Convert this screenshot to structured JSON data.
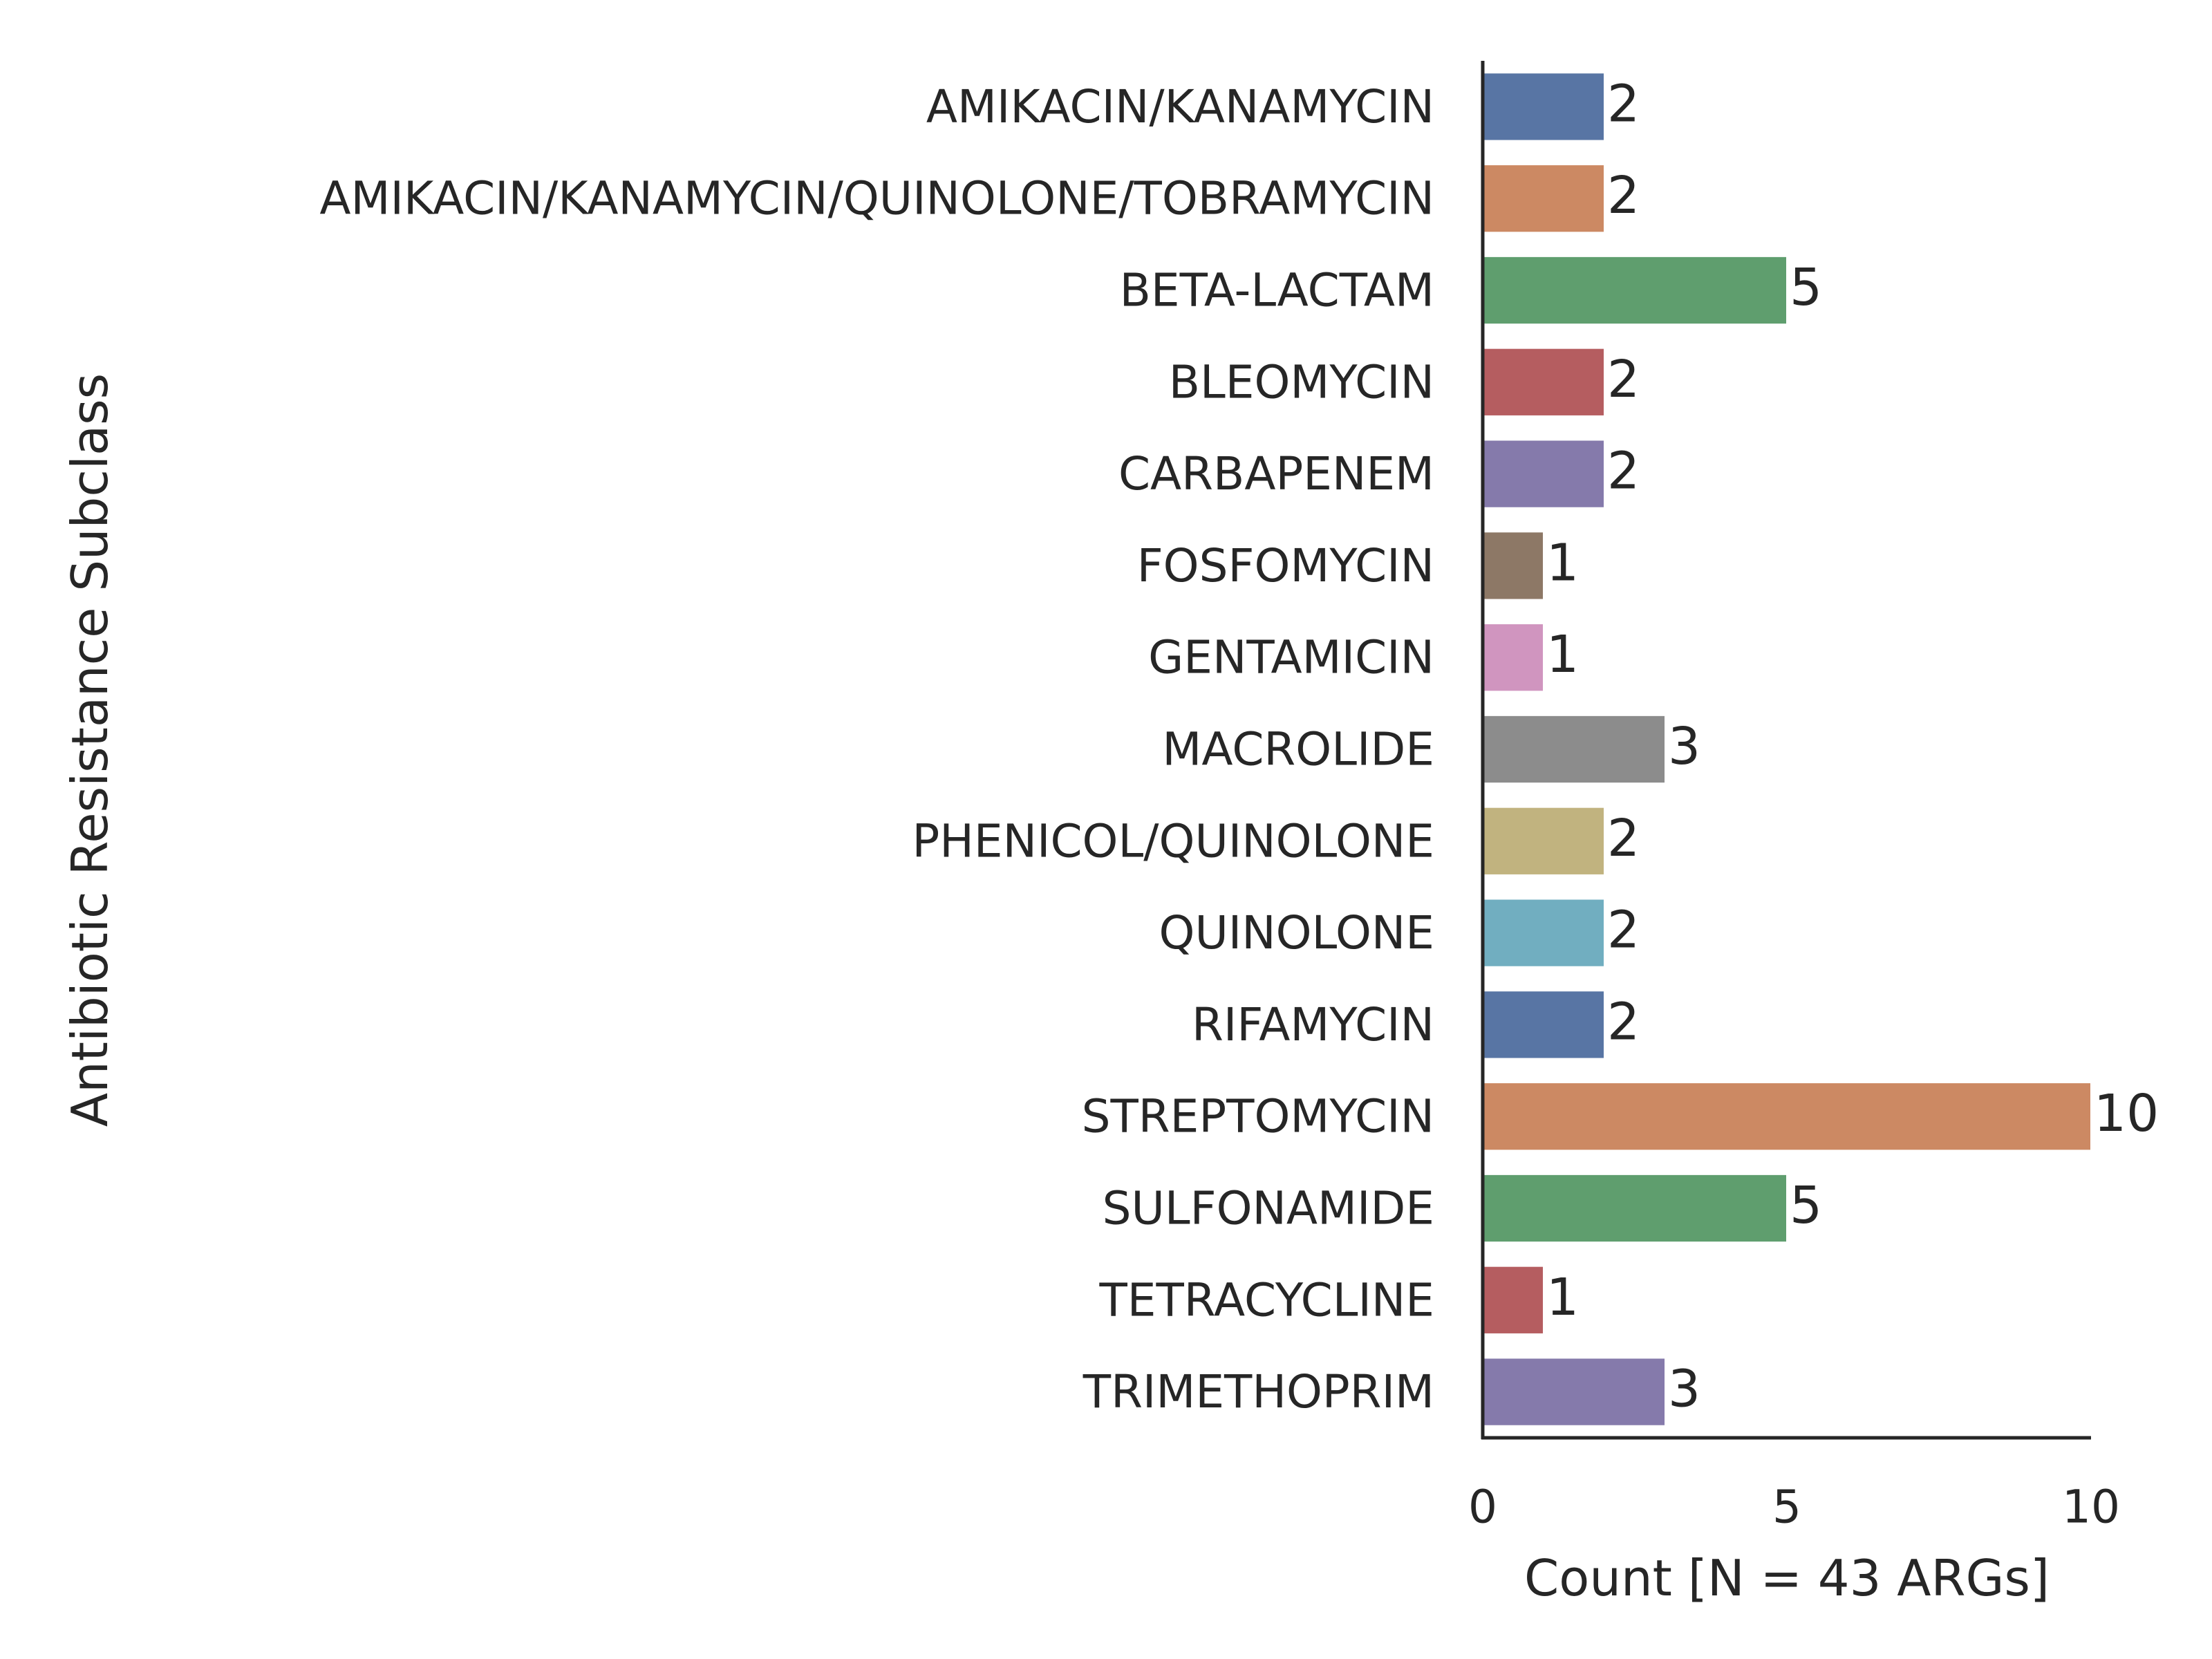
{
  "chart_data": {
    "type": "bar",
    "orientation": "horizontal",
    "categories": [
      "AMIKACIN/KANAMYCIN",
      "AMIKACIN/KANAMYCIN/QUINOLONE/TOBRAMYCIN",
      "BETA-LACTAM",
      "BLEOMYCIN",
      "CARBAPENEM",
      "FOSFOMYCIN",
      "GENTAMICIN",
      "MACROLIDE",
      "PHENICOL/QUINOLONE",
      "QUINOLONE",
      "RIFAMYCIN",
      "STREPTOMYCIN",
      "SULFONAMIDE",
      "TETRACYCLINE",
      "TRIMETHOPRIM"
    ],
    "values": [
      2,
      2,
      5,
      2,
      2,
      1,
      1,
      3,
      2,
      2,
      2,
      10,
      5,
      1,
      3
    ],
    "colors": [
      "#5875a4",
      "#cc8963",
      "#5f9e6e",
      "#b55d60",
      "#857aab",
      "#8d7866",
      "#d095bf",
      "#8c8c8c",
      "#c1b37f",
      "#71aec0",
      "#5875a4",
      "#cc8963",
      "#5f9e6e",
      "#b55d60",
      "#857aab"
    ],
    "xlabel": "Count [N = 43 ARGs]",
    "ylabel": "Antibiotic Resistance Subclass",
    "xlim": [
      0,
      10
    ],
    "xticks": [
      0,
      5,
      10
    ],
    "grid": false,
    "legend": "none"
  }
}
